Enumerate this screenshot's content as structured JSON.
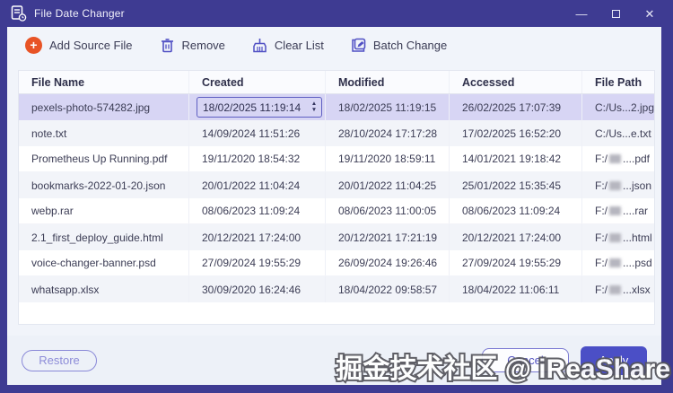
{
  "window": {
    "title": "File Date Changer",
    "controls": {
      "minimize": "—",
      "close": "✕"
    }
  },
  "toolbar": {
    "add_source_file": "Add Source File",
    "remove": "Remove",
    "clear_list": "Clear List",
    "batch_change": "Batch Change"
  },
  "table": {
    "columns": [
      "File Name",
      "Created",
      "Modified",
      "Accessed",
      "File Path"
    ],
    "rows": [
      {
        "file_name": "pexels-photo-574282.jpg",
        "created": "18/02/2025 11:19:14",
        "modified": "18/02/2025 11:19:15",
        "accessed": "26/02/2025 17:07:39",
        "path_prefix": "C:/Us...2.jpg",
        "path_redacted": false,
        "path_suffix": "",
        "selected": true,
        "created_editing": true
      },
      {
        "file_name": "note.txt",
        "created": "14/09/2024 11:51:26",
        "modified": "28/10/2024 17:17:28",
        "accessed": "17/02/2025 16:52:20",
        "path_prefix": "C:/Us...e.txt",
        "path_redacted": false,
        "path_suffix": "",
        "selected": false,
        "created_editing": false
      },
      {
        "file_name": "Prometheus Up Running.pdf",
        "created": "19/11/2020 18:54:32",
        "modified": "19/11/2020 18:59:11",
        "accessed": "14/01/2021 19:18:42",
        "path_prefix": "F:/",
        "path_redacted": true,
        "path_suffix": "....pdf",
        "selected": false,
        "created_editing": false
      },
      {
        "file_name": "bookmarks-2022-01-20.json",
        "created": "20/01/2022 11:04:24",
        "modified": "20/01/2022 11:04:25",
        "accessed": "25/01/2022 15:35:45",
        "path_prefix": "F:/",
        "path_redacted": true,
        "path_suffix": "...json",
        "selected": false,
        "created_editing": false
      },
      {
        "file_name": "webp.rar",
        "created": "08/06/2023 11:09:24",
        "modified": "08/06/2023 11:00:05",
        "accessed": "08/06/2023 11:09:24",
        "path_prefix": "F:/",
        "path_redacted": true,
        "path_suffix": "....rar",
        "selected": false,
        "created_editing": false
      },
      {
        "file_name": "2.1_first_deploy_guide.html",
        "created": "20/12/2021 17:24:00",
        "modified": "20/12/2021 17:21:19",
        "accessed": "20/12/2021 17:24:00",
        "path_prefix": "F:/",
        "path_redacted": true,
        "path_suffix": "...html",
        "selected": false,
        "created_editing": false
      },
      {
        "file_name": "voice-changer-banner.psd",
        "created": "27/09/2024 19:55:29",
        "modified": "26/09/2024 19:26:46",
        "accessed": "27/09/2024 19:55:29",
        "path_prefix": "F:/",
        "path_redacted": true,
        "path_suffix": "....psd",
        "selected": false,
        "created_editing": false
      },
      {
        "file_name": "whatsapp.xlsx",
        "created": "30/09/2020 16:24:46",
        "modified": "18/04/2022 09:58:57",
        "accessed": "18/04/2022 11:06:11",
        "path_prefix": "F:/",
        "path_redacted": true,
        "path_suffix": "...xlsx",
        "selected": false,
        "created_editing": false
      }
    ],
    "spinner": {
      "up": "▲",
      "down": "▼"
    }
  },
  "footer": {
    "restore": "Restore",
    "cancel": "Cancel",
    "apply": "Apply"
  },
  "watermark": "掘金技术社区 @ iReaShare",
  "icons": {
    "app": "file-clock-icon",
    "add": "plus-circle-icon",
    "remove": "trash-icon",
    "clear": "broom-icon",
    "batch": "edit-copy-icon"
  },
  "colors": {
    "titlebar": "#3e3b92",
    "accent_purple": "#5150c4",
    "add_orange": "#e85325",
    "selected_row": "#d7d5f4",
    "apply_button": "#4b4fc6",
    "toolbar_bg": "#f1f4fa",
    "footer_bg": "#edf1f8"
  }
}
